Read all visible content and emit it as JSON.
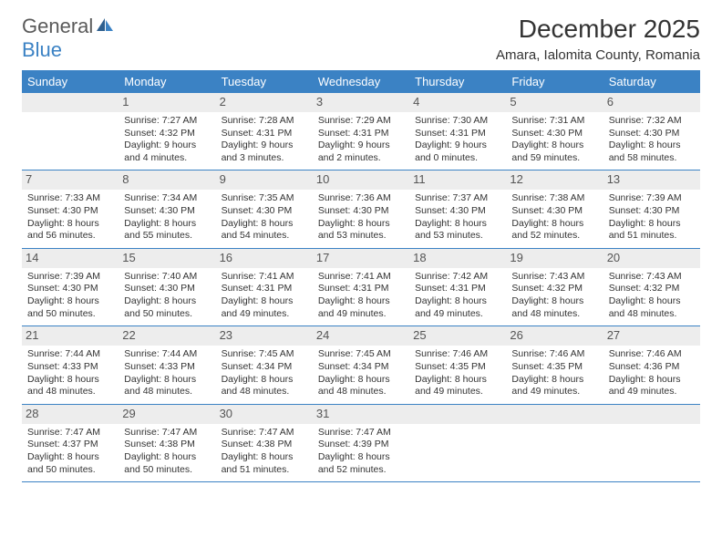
{
  "logo": {
    "general": "General",
    "blue": "Blue"
  },
  "title": "December 2025",
  "location": "Amara, Ialomita County, Romania",
  "colors": {
    "header_bg": "#3b82c4",
    "header_text": "#ffffff",
    "daynum_bg": "#ededed",
    "border": "#3b82c4",
    "text": "#333333"
  },
  "weekdays": [
    "Sunday",
    "Monday",
    "Tuesday",
    "Wednesday",
    "Thursday",
    "Friday",
    "Saturday"
  ],
  "weeks": [
    [
      null,
      {
        "n": "1",
        "sr": "Sunrise: 7:27 AM",
        "ss": "Sunset: 4:32 PM",
        "d1": "Daylight: 9 hours",
        "d2": "and 4 minutes."
      },
      {
        "n": "2",
        "sr": "Sunrise: 7:28 AM",
        "ss": "Sunset: 4:31 PM",
        "d1": "Daylight: 9 hours",
        "d2": "and 3 minutes."
      },
      {
        "n": "3",
        "sr": "Sunrise: 7:29 AM",
        "ss": "Sunset: 4:31 PM",
        "d1": "Daylight: 9 hours",
        "d2": "and 2 minutes."
      },
      {
        "n": "4",
        "sr": "Sunrise: 7:30 AM",
        "ss": "Sunset: 4:31 PM",
        "d1": "Daylight: 9 hours",
        "d2": "and 0 minutes."
      },
      {
        "n": "5",
        "sr": "Sunrise: 7:31 AM",
        "ss": "Sunset: 4:30 PM",
        "d1": "Daylight: 8 hours",
        "d2": "and 59 minutes."
      },
      {
        "n": "6",
        "sr": "Sunrise: 7:32 AM",
        "ss": "Sunset: 4:30 PM",
        "d1": "Daylight: 8 hours",
        "d2": "and 58 minutes."
      }
    ],
    [
      {
        "n": "7",
        "sr": "Sunrise: 7:33 AM",
        "ss": "Sunset: 4:30 PM",
        "d1": "Daylight: 8 hours",
        "d2": "and 56 minutes."
      },
      {
        "n": "8",
        "sr": "Sunrise: 7:34 AM",
        "ss": "Sunset: 4:30 PM",
        "d1": "Daylight: 8 hours",
        "d2": "and 55 minutes."
      },
      {
        "n": "9",
        "sr": "Sunrise: 7:35 AM",
        "ss": "Sunset: 4:30 PM",
        "d1": "Daylight: 8 hours",
        "d2": "and 54 minutes."
      },
      {
        "n": "10",
        "sr": "Sunrise: 7:36 AM",
        "ss": "Sunset: 4:30 PM",
        "d1": "Daylight: 8 hours",
        "d2": "and 53 minutes."
      },
      {
        "n": "11",
        "sr": "Sunrise: 7:37 AM",
        "ss": "Sunset: 4:30 PM",
        "d1": "Daylight: 8 hours",
        "d2": "and 53 minutes."
      },
      {
        "n": "12",
        "sr": "Sunrise: 7:38 AM",
        "ss": "Sunset: 4:30 PM",
        "d1": "Daylight: 8 hours",
        "d2": "and 52 minutes."
      },
      {
        "n": "13",
        "sr": "Sunrise: 7:39 AM",
        "ss": "Sunset: 4:30 PM",
        "d1": "Daylight: 8 hours",
        "d2": "and 51 minutes."
      }
    ],
    [
      {
        "n": "14",
        "sr": "Sunrise: 7:39 AM",
        "ss": "Sunset: 4:30 PM",
        "d1": "Daylight: 8 hours",
        "d2": "and 50 minutes."
      },
      {
        "n": "15",
        "sr": "Sunrise: 7:40 AM",
        "ss": "Sunset: 4:30 PM",
        "d1": "Daylight: 8 hours",
        "d2": "and 50 minutes."
      },
      {
        "n": "16",
        "sr": "Sunrise: 7:41 AM",
        "ss": "Sunset: 4:31 PM",
        "d1": "Daylight: 8 hours",
        "d2": "and 49 minutes."
      },
      {
        "n": "17",
        "sr": "Sunrise: 7:41 AM",
        "ss": "Sunset: 4:31 PM",
        "d1": "Daylight: 8 hours",
        "d2": "and 49 minutes."
      },
      {
        "n": "18",
        "sr": "Sunrise: 7:42 AM",
        "ss": "Sunset: 4:31 PM",
        "d1": "Daylight: 8 hours",
        "d2": "and 49 minutes."
      },
      {
        "n": "19",
        "sr": "Sunrise: 7:43 AM",
        "ss": "Sunset: 4:32 PM",
        "d1": "Daylight: 8 hours",
        "d2": "and 48 minutes."
      },
      {
        "n": "20",
        "sr": "Sunrise: 7:43 AM",
        "ss": "Sunset: 4:32 PM",
        "d1": "Daylight: 8 hours",
        "d2": "and 48 minutes."
      }
    ],
    [
      {
        "n": "21",
        "sr": "Sunrise: 7:44 AM",
        "ss": "Sunset: 4:33 PM",
        "d1": "Daylight: 8 hours",
        "d2": "and 48 minutes."
      },
      {
        "n": "22",
        "sr": "Sunrise: 7:44 AM",
        "ss": "Sunset: 4:33 PM",
        "d1": "Daylight: 8 hours",
        "d2": "and 48 minutes."
      },
      {
        "n": "23",
        "sr": "Sunrise: 7:45 AM",
        "ss": "Sunset: 4:34 PM",
        "d1": "Daylight: 8 hours",
        "d2": "and 48 minutes."
      },
      {
        "n": "24",
        "sr": "Sunrise: 7:45 AM",
        "ss": "Sunset: 4:34 PM",
        "d1": "Daylight: 8 hours",
        "d2": "and 48 minutes."
      },
      {
        "n": "25",
        "sr": "Sunrise: 7:46 AM",
        "ss": "Sunset: 4:35 PM",
        "d1": "Daylight: 8 hours",
        "d2": "and 49 minutes."
      },
      {
        "n": "26",
        "sr": "Sunrise: 7:46 AM",
        "ss": "Sunset: 4:35 PM",
        "d1": "Daylight: 8 hours",
        "d2": "and 49 minutes."
      },
      {
        "n": "27",
        "sr": "Sunrise: 7:46 AM",
        "ss": "Sunset: 4:36 PM",
        "d1": "Daylight: 8 hours",
        "d2": "and 49 minutes."
      }
    ],
    [
      {
        "n": "28",
        "sr": "Sunrise: 7:47 AM",
        "ss": "Sunset: 4:37 PM",
        "d1": "Daylight: 8 hours",
        "d2": "and 50 minutes."
      },
      {
        "n": "29",
        "sr": "Sunrise: 7:47 AM",
        "ss": "Sunset: 4:38 PM",
        "d1": "Daylight: 8 hours",
        "d2": "and 50 minutes."
      },
      {
        "n": "30",
        "sr": "Sunrise: 7:47 AM",
        "ss": "Sunset: 4:38 PM",
        "d1": "Daylight: 8 hours",
        "d2": "and 51 minutes."
      },
      {
        "n": "31",
        "sr": "Sunrise: 7:47 AM",
        "ss": "Sunset: 4:39 PM",
        "d1": "Daylight: 8 hours",
        "d2": "and 52 minutes."
      },
      null,
      null,
      null
    ]
  ]
}
